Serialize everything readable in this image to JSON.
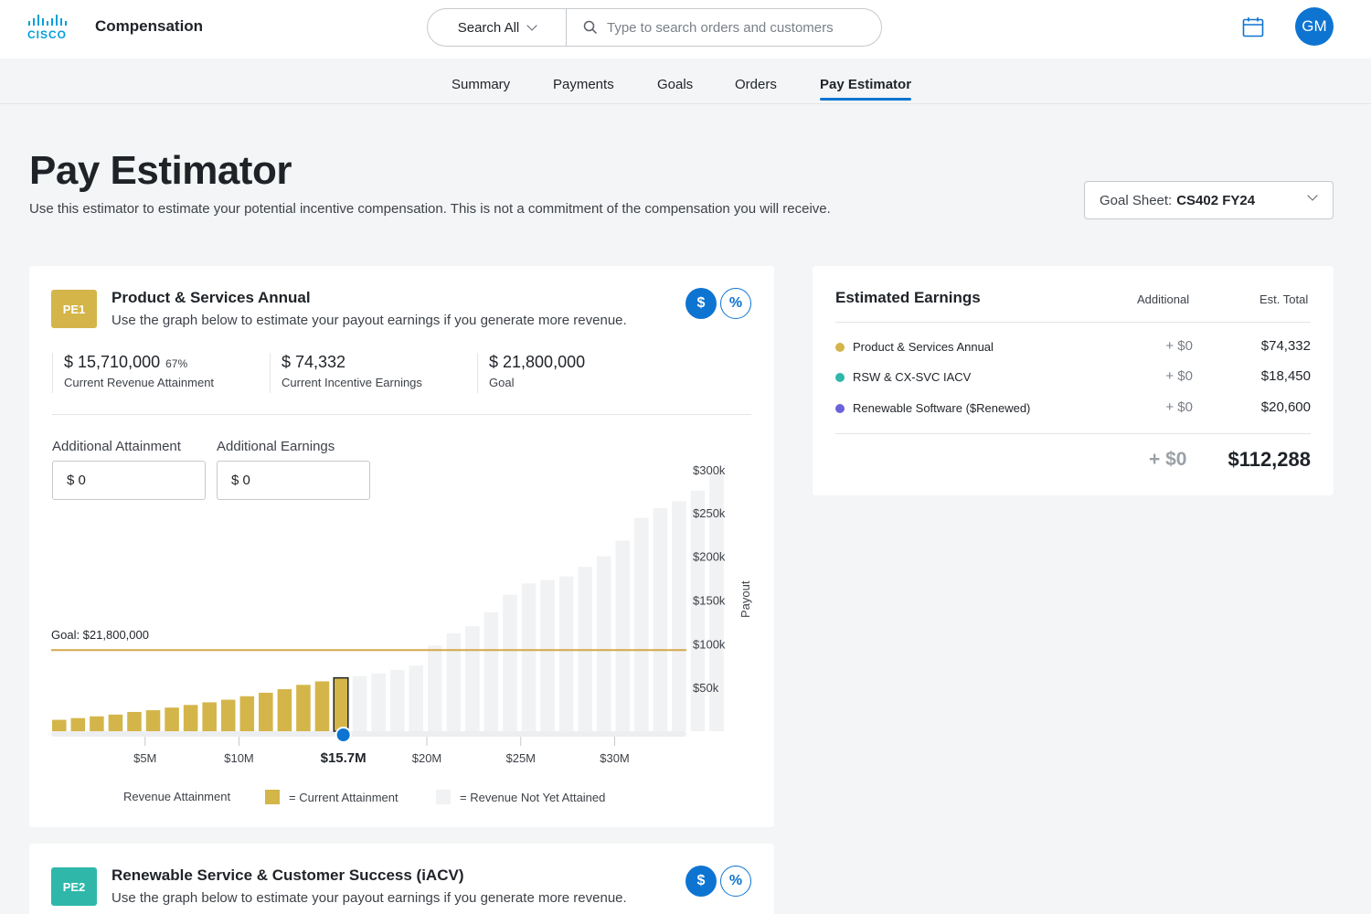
{
  "header": {
    "logo_text": "CISCO",
    "app_title": "Compensation",
    "search_scope": "Search All",
    "search_placeholder": "Type to search orders and customers",
    "avatar_initials": "GM"
  },
  "tabs": [
    {
      "label": "Summary"
    },
    {
      "label": "Payments"
    },
    {
      "label": "Goals"
    },
    {
      "label": "Orders"
    },
    {
      "label": "Pay Estimator",
      "active": true
    }
  ],
  "page": {
    "title": "Pay Estimator",
    "subtitle": "Use this estimator to estimate your potential incentive compensation. This is not a commitment of the compensation you will receive.",
    "goal_sheet_label": "Goal Sheet:",
    "goal_sheet_value": "CS402 FY24"
  },
  "pe1": {
    "badge": "PE1",
    "badge_color": "#d4b54a",
    "title": "Product & Services Annual",
    "subtitle": "Use the graph below to estimate your payout earnings if you generate more revenue.",
    "toggle_dollar": "$",
    "toggle_percent": "%",
    "stats": [
      {
        "value": "$ 15,710,000",
        "pct": "67%",
        "label": "Current Revenue Attainment"
      },
      {
        "value": "$ 74,332",
        "label": "Current Incentive Earnings"
      },
      {
        "value": "$ 21,800,000",
        "label": "Goal"
      }
    ],
    "additional_attainment_label": "Additional Attainment",
    "additional_attainment_value": "$ 0",
    "additional_earnings_label": "Additional Earnings",
    "additional_earnings_value": "$ 0",
    "legend": {
      "title": "Revenue Attainment",
      "current": "= Current Attainment",
      "not_attained": "= Revenue Not Yet Attained"
    }
  },
  "pe2": {
    "badge": "PE2",
    "badge_color": "#2fb8aa",
    "title": "Renewable Service & Customer Success (iACV)",
    "subtitle": "Use the graph below to estimate your payout earnings if you generate more revenue.",
    "toggle_dollar": "$",
    "toggle_percent": "%"
  },
  "earnings": {
    "title": "Estimated Earnings",
    "col_additional": "Additional",
    "col_total": "Est. Total",
    "rows": [
      {
        "name": "Product & Services Annual",
        "additional": "+ $0",
        "total": "$74,332",
        "color": "#d4b54a"
      },
      {
        "name": "RSW & CX-SVC IACV",
        "additional": "+ $0",
        "total": "$18,450",
        "color": "#2fb8aa"
      },
      {
        "name": "Renewable Software ($Renewed)",
        "additional": "+ $0",
        "total": "$20,600",
        "color": "#6b63d9"
      }
    ],
    "sum_additional": "+ $0",
    "sum_total": "$112,288"
  },
  "colors": {
    "accent": "#0d74d1",
    "attained": "#d4b54a",
    "not_attained": "#f1f2f3",
    "goal_line": "#d4a84a"
  },
  "chart_data": {
    "type": "bar",
    "x_unit": "revenue ($M)",
    "y_unit": "payout ($)",
    "x_tick_labels": [
      "$5M",
      "$10M",
      "$15.7M",
      "$20M",
      "$25M",
      "$30M"
    ],
    "x_tick_values": [
      5,
      10,
      15.7,
      20,
      25,
      30
    ],
    "y_tick_labels": [
      "$300k",
      "$250k",
      "$200k",
      "$150k",
      "$100k",
      "$50k"
    ],
    "y_tick_values": [
      300000,
      250000,
      200000,
      150000,
      100000,
      50000
    ],
    "ylabel": "Payout",
    "xlim": [
      0,
      33
    ],
    "ylim": [
      0,
      300000
    ],
    "goal_label": "Goal: $21,800,000",
    "goal_payout": 98000,
    "current_attainment": 15.7,
    "bar_width_m": 1,
    "bars_x": [
      1,
      2,
      3,
      4,
      5,
      6,
      7,
      8,
      9,
      10,
      11,
      12,
      13,
      14,
      15,
      16,
      17,
      18,
      19,
      20,
      21,
      22,
      23,
      24,
      25,
      26,
      27,
      28,
      29,
      30,
      31,
      32,
      33,
      34,
      35,
      36
    ],
    "bars_y": [
      13000,
      15000,
      17000,
      19000,
      22000,
      24000,
      27000,
      30000,
      33000,
      36000,
      40000,
      44000,
      48000,
      53000,
      57000,
      61000,
      63000,
      66000,
      70000,
      75000,
      98000,
      112000,
      120000,
      136000,
      156000,
      169000,
      173000,
      177000,
      188000,
      200000,
      218000,
      244000,
      255000,
      263000,
      275000,
      295000
    ]
  }
}
